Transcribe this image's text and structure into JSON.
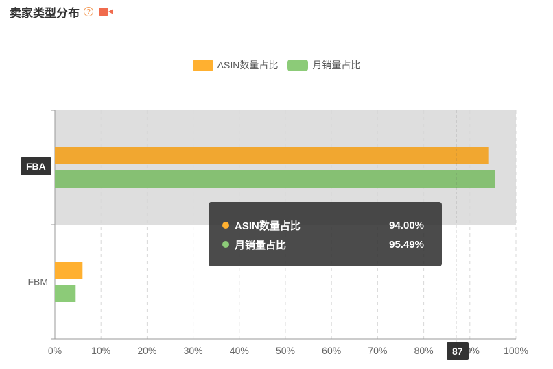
{
  "header": {
    "title": "卖家类型分布",
    "help_icon": "question-circle-icon",
    "video_icon": "video-camera-icon"
  },
  "colors": {
    "asin": "#FFB030",
    "sales": "#8CCB78",
    "highlight_band": "#DEDEDE",
    "tooltip_bg": "#333333"
  },
  "chart_data": {
    "type": "bar",
    "orientation": "horizontal",
    "categories": [
      "FBA",
      "FBM"
    ],
    "series": [
      {
        "name": "ASIN数量占比",
        "values": [
          94.0,
          6.0
        ]
      },
      {
        "name": "月销量占比",
        "values": [
          95.49,
          4.51
        ]
      }
    ],
    "xlim": [
      0,
      100
    ],
    "xticks": [
      "0%",
      "10%",
      "20%",
      "30%",
      "40%",
      "50%",
      "60%",
      "70%",
      "80%",
      "90%",
      "100%"
    ],
    "grid": true,
    "legend": "top-center",
    "highlighted_category": "FBA",
    "crosshair_value": 87
  },
  "legend_items": [
    {
      "label": "ASIN数量占比"
    },
    {
      "label": "月销量占比"
    }
  ],
  "tooltip": {
    "rows": [
      {
        "name": "ASIN数量占比",
        "value": "94.00%"
      },
      {
        "name": "月销量占比",
        "value": "95.49%"
      }
    ]
  },
  "axis_pointer": {
    "y_label": "FBA",
    "x_label": "87"
  }
}
